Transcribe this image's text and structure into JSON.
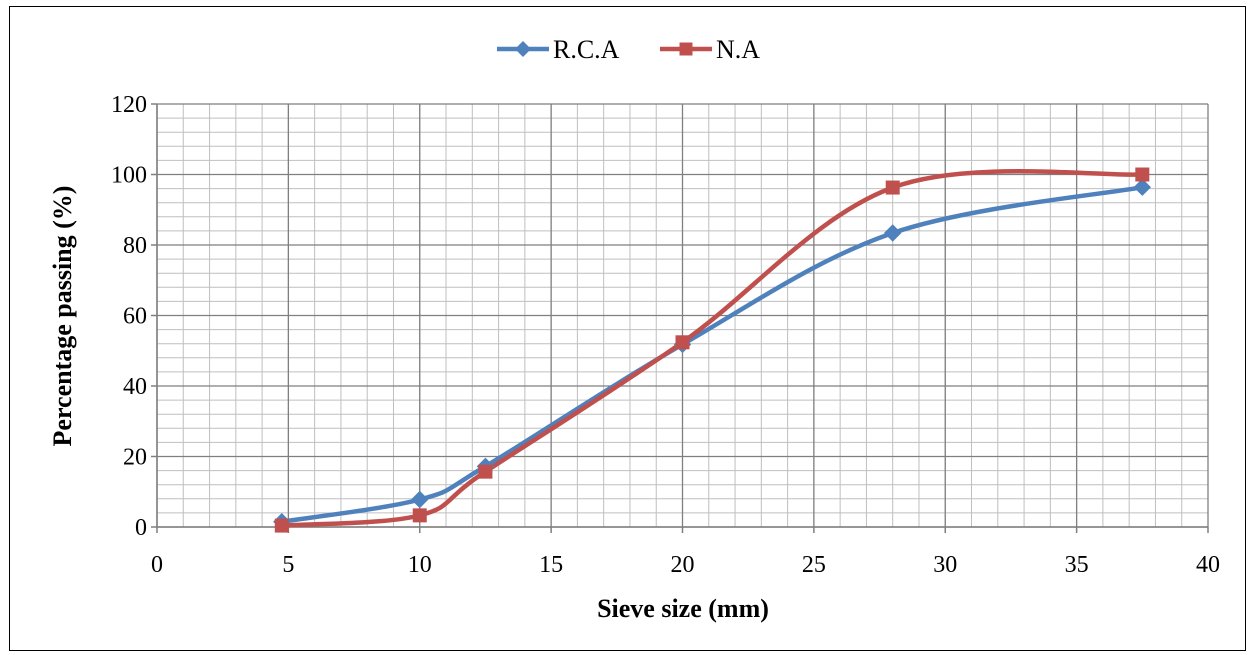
{
  "chart_data": {
    "type": "line",
    "xlabel": "Sieve size (mm)",
    "ylabel": "Percentage passing (%)",
    "xlim": [
      0,
      40
    ],
    "ylim": [
      0,
      120
    ],
    "x_ticks": [
      0,
      5,
      10,
      15,
      20,
      25,
      30,
      35,
      40
    ],
    "y_ticks": [
      0,
      20,
      40,
      60,
      80,
      100,
      120
    ],
    "x_minor_step": 1,
    "y_minor_step": 4,
    "grid": true,
    "smooth": true,
    "legend_position": "top-center",
    "series": [
      {
        "name": "R.C.A",
        "color": "#4F81BD",
        "marker": "diamond",
        "x": [
          4.75,
          10,
          12.5,
          20,
          28,
          37.5
        ],
        "y": [
          1.5,
          7.8,
          17.2,
          51.8,
          83.4,
          96.4
        ]
      },
      {
        "name": "N.A",
        "color": "#C0504D",
        "marker": "square",
        "x": [
          4.75,
          10,
          12.5,
          20,
          28,
          37.5
        ],
        "y": [
          0.4,
          3.3,
          15.7,
          52.4,
          96.3,
          100
        ]
      }
    ]
  }
}
